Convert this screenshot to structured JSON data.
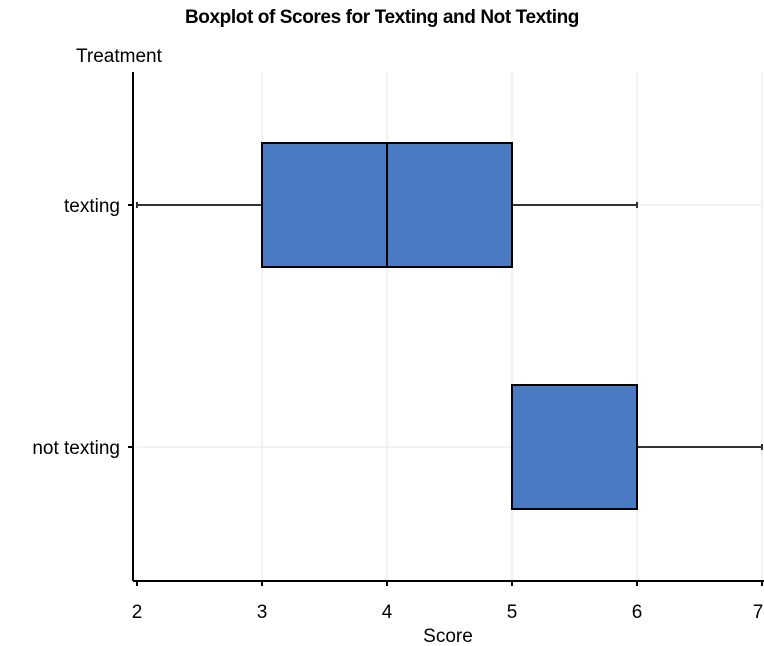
{
  "chart_data": {
    "type": "boxplot",
    "title": "Boxplot of Scores for Texting and Not Texting",
    "xlabel": "Score",
    "ylabel": "Treatment",
    "xlim": [
      2,
      7
    ],
    "x_ticks": [
      2,
      3,
      4,
      5,
      6,
      7
    ],
    "grid": true,
    "box_color": "#4a7bc2",
    "categories": [
      "texting",
      "not texting"
    ],
    "boxes": [
      {
        "category": "texting",
        "min": 2,
        "q1": 3,
        "median": 4,
        "q3": 5,
        "max": 6
      },
      {
        "category": "not texting",
        "min": 5,
        "q1": 5,
        "median": 5,
        "q3": 6,
        "max": 7
      }
    ]
  }
}
